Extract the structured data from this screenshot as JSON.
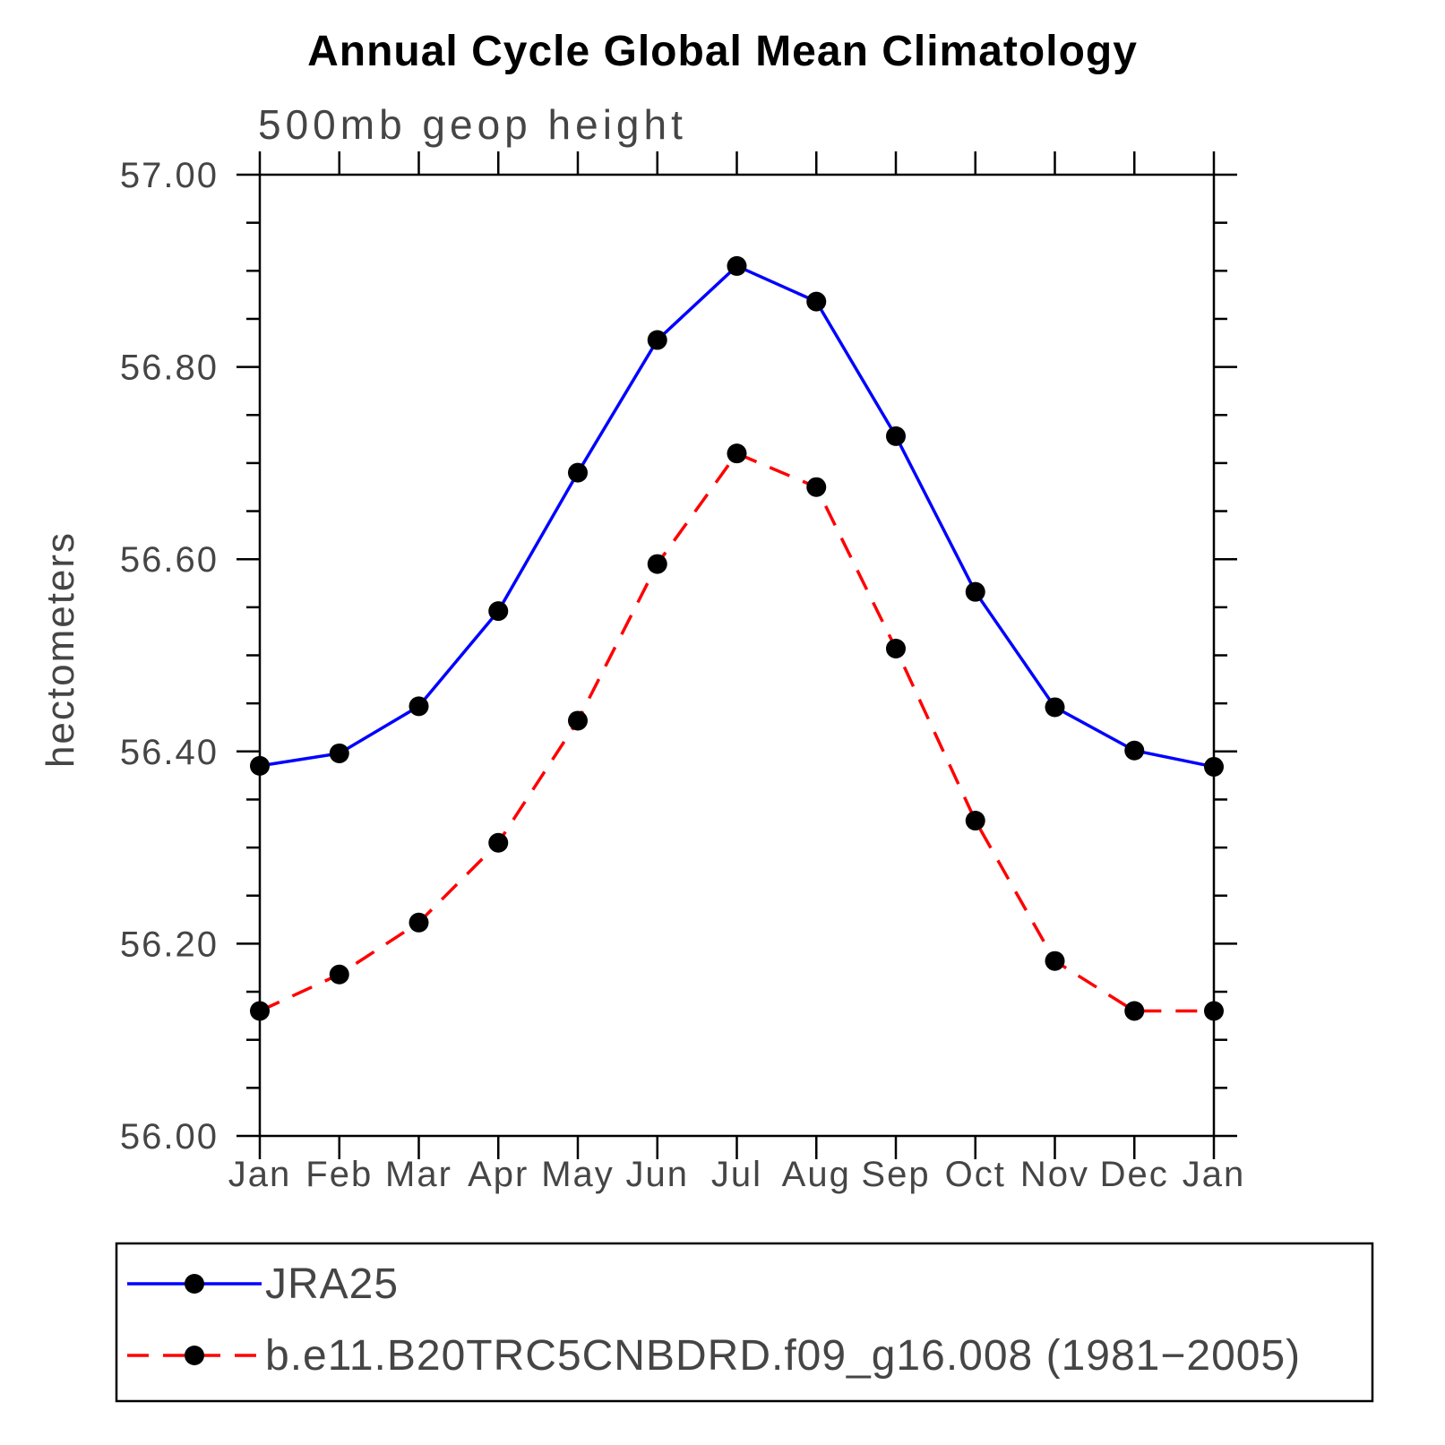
{
  "title": "Annual Cycle Global Mean Climatology",
  "subtitle": "500mb geop height",
  "ylabel": "hectometers",
  "legend": {
    "position": "bottom",
    "entries": [
      {
        "label": "JRA25",
        "color": "#0000ff",
        "style": "solid",
        "marker": "circle",
        "marker_color": "#000000"
      },
      {
        "label": "b.e11.B20TRC5CNBDRD.f09_g16.008 (1981−2005)",
        "color": "#ff0000",
        "style": "dashed",
        "marker": "circle",
        "marker_color": "#000000"
      }
    ]
  },
  "chart_data": {
    "type": "line",
    "title": "Annual Cycle Global Mean Climatology",
    "subtitle": "500mb geop height",
    "ylabel": "hectometers",
    "xlabel": "",
    "categories": [
      "Jan",
      "Feb",
      "Mar",
      "Apr",
      "May",
      "Jun",
      "Jul",
      "Aug",
      "Sep",
      "Oct",
      "Nov",
      "Dec",
      "Jan"
    ],
    "series": [
      {
        "name": "JRA25",
        "color": "#0000ff",
        "style": "solid",
        "marker": "circle",
        "marker_color": "#000000",
        "values": [
          56.385,
          56.398,
          56.447,
          56.546,
          56.69,
          56.828,
          56.905,
          56.868,
          56.728,
          56.566,
          56.446,
          56.401,
          56.384
        ]
      },
      {
        "name": "b.e11.B20TRC5CNBDRD.f09_g16.008 (1981−2005)",
        "color": "#ff0000",
        "style": "dashed",
        "marker": "circle",
        "marker_color": "#000000",
        "values": [
          56.13,
          56.168,
          56.222,
          56.305,
          56.432,
          56.595,
          56.71,
          56.675,
          56.507,
          56.328,
          56.182,
          56.13,
          56.13
        ]
      }
    ],
    "ylim": [
      56.0,
      57.0
    ],
    "yticks": [
      56.0,
      56.2,
      56.4,
      56.6,
      56.8,
      57.0
    ],
    "ytick_labels": [
      "56.00",
      "56.20",
      "56.40",
      "56.60",
      "56.80",
      "57.00"
    ],
    "y_minor_step": 0.05,
    "grid": false,
    "legend_position": "bottom"
  }
}
